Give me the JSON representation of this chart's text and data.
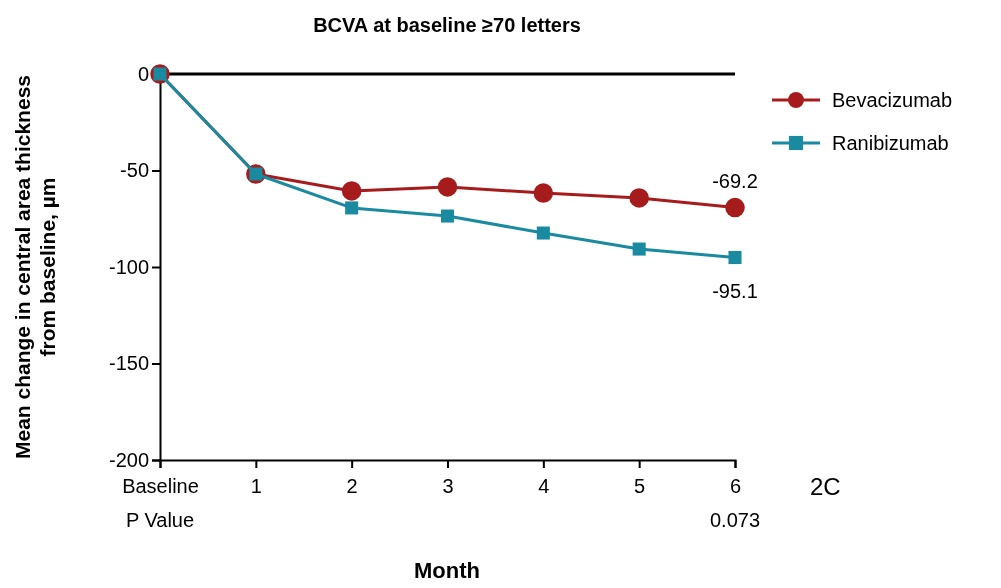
{
  "chart_data": {
    "type": "line",
    "title": "BCVA at baseline ≥70 letters",
    "xlabel": "Month",
    "ylabel": "Mean change in central area thickness from baseline, µm",
    "categories": [
      "Baseline",
      "1",
      "2",
      "3",
      "4",
      "5",
      "6"
    ],
    "series": [
      {
        "name": "Bevacizumab",
        "color": "#a61c1c",
        "marker": "circle",
        "values": [
          0,
          -51.8,
          -60.6,
          -58.5,
          -61.7,
          -64.2,
          -69.2
        ],
        "value_labels": [
          null,
          null,
          null,
          null,
          null,
          null,
          "-69.2"
        ]
      },
      {
        "name": "Ranibizumab",
        "color": "#1a8aa0",
        "marker": "square",
        "values": [
          0,
          -51.8,
          -69.4,
          -73.6,
          -82.4,
          -90.7,
          -95.1
        ],
        "value_labels": [
          null,
          null,
          null,
          null,
          null,
          null,
          "-95.1"
        ]
      }
    ],
    "ylim": [
      -200,
      0
    ],
    "yticks": [
      -200,
      -150,
      -100,
      -50,
      0
    ],
    "ref_lines": [
      {
        "axis": "y",
        "value": 0,
        "color": "#000000"
      }
    ],
    "legend": "right",
    "grid": false,
    "annotations": [
      "P Value",
      "0.073",
      "2C"
    ]
  }
}
